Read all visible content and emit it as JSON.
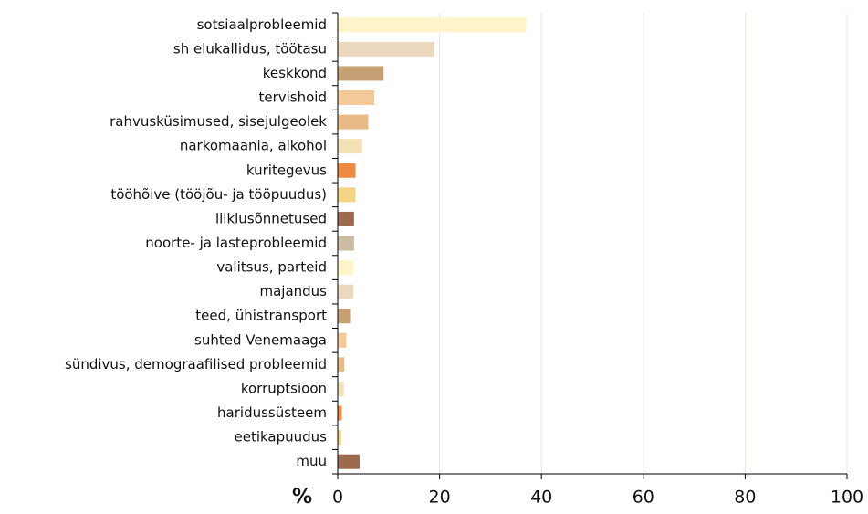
{
  "chart_data": {
    "type": "barh",
    "categories": [
      "sotsiaalprobleemid",
      "sh elukallidus, töötasu",
      "keskkond",
      "tervishoid",
      "rahvusküsimused, sisejulgeolek",
      "narkomaania, alkohol",
      "kuritegevus",
      "tööhõive (tööjõu- ja tööpuudus)",
      "liiklusõnnetused",
      "noorte- ja lasteprobleemid",
      "valitsus, parteid",
      "majandus",
      "teed, ühistransport",
      "suhted Venemaaga",
      "sündivus, demograafilised probleemid",
      "korruptsioon",
      "haridussüsteem",
      "eetikapuudus",
      "muu"
    ],
    "values": [
      37,
      19,
      9,
      7.2,
      6,
      4.8,
      3.5,
      3.5,
      3.2,
      3.2,
      3.1,
      3.1,
      2.6,
      1.7,
      1.3,
      1.2,
      0.8,
      0.7,
      4.3
    ],
    "colors": [
      "#fff3c9",
      "#ead8bf",
      "#c4a074",
      "#f4c99a",
      "#e8bb86",
      "#f2e2b3",
      "#ec8a3f",
      "#f2d484",
      "#9c6a4c",
      "#cbbba2",
      "#fff3c9",
      "#ead8bf",
      "#c4a074",
      "#f4c99a",
      "#e8bb86",
      "#f2e2b3",
      "#ec8a3f",
      "#f2d484",
      "#9c6a4c"
    ],
    "xlabel": "%",
    "xlim": [
      0,
      100
    ],
    "xticks": [
      0,
      20,
      40,
      60,
      80,
      100
    ],
    "grid": true
  }
}
